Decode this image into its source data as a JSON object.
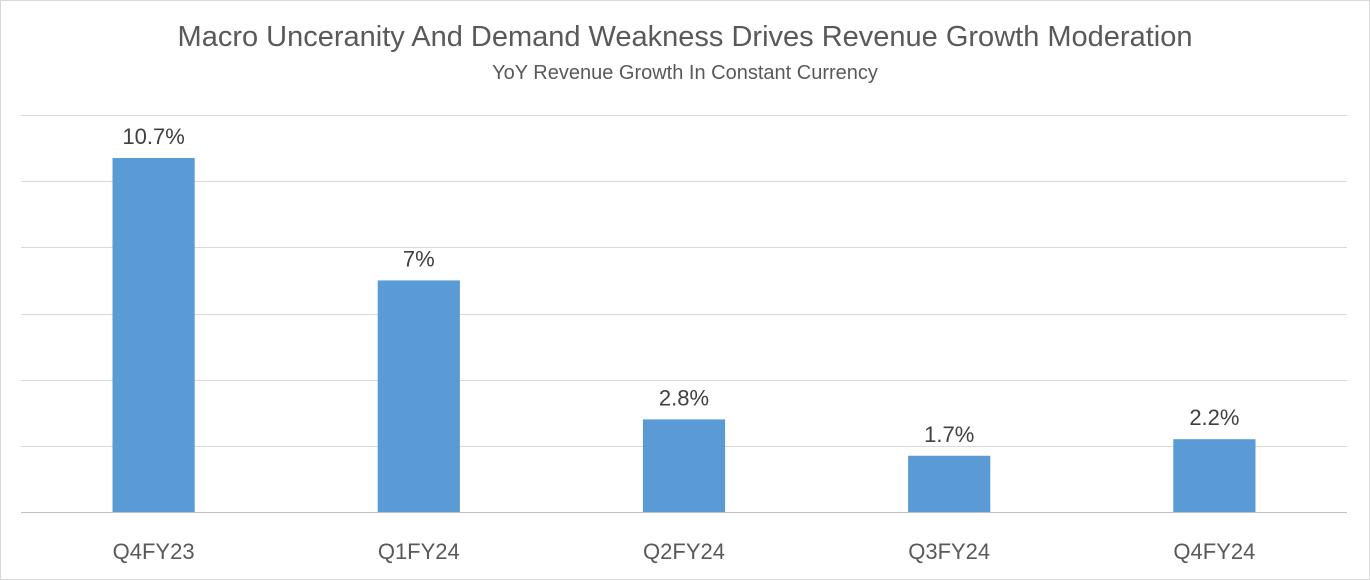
{
  "chart_data": {
    "type": "bar",
    "title": "Macro Unceranity And Demand Weakness Drives Revenue Growth Moderation",
    "subtitle": "YoY Revenue Growth In Constant Currency",
    "categories": [
      "Q4FY23",
      "Q1FY24",
      "Q2FY24",
      "Q3FY24",
      "Q4FY24"
    ],
    "values": [
      10.7,
      7,
      2.8,
      1.7,
      2.2
    ],
    "data_labels": [
      "10.7%",
      "7%",
      "2.8%",
      "1.7%",
      "2.2%"
    ],
    "ylim": [
      0,
      12
    ],
    "y_tick_step": 2,
    "y_tick_labels_visible": false,
    "grid": true,
    "legend": "none",
    "colors": {
      "bar": "#5b9bd5",
      "grid": "#d9d9d9",
      "axis": "#bfbfbf"
    }
  }
}
